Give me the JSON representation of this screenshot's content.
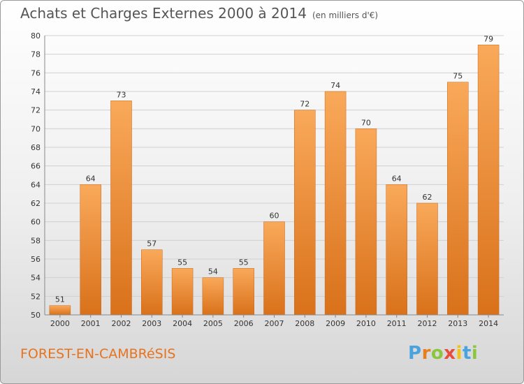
{
  "header": {
    "title": "Achats et Charges Externes 2000 à 2014",
    "unit": "(en milliers d'€)"
  },
  "footer": {
    "place": "FOREST-EN-CAMBRéSIS",
    "logo_letters": [
      {
        "ch": "P",
        "color": "#4aa3df"
      },
      {
        "ch": "r",
        "color": "#e67e22"
      },
      {
        "ch": "o",
        "color": "#8cc63f"
      },
      {
        "ch": "x",
        "color": "#e74c3c"
      },
      {
        "ch": "i",
        "color": "#f1c40f"
      },
      {
        "ch": "t",
        "color": "#4aa3df"
      },
      {
        "ch": "i",
        "color": "#8cc63f"
      }
    ]
  },
  "chart_data": {
    "type": "bar",
    "categories": [
      "2000",
      "2001",
      "2002",
      "2003",
      "2004",
      "2005",
      "2006",
      "2007",
      "2008",
      "2009",
      "2010",
      "2011",
      "2012",
      "2013",
      "2014"
    ],
    "values": [
      51,
      64,
      73,
      57,
      55,
      54,
      55,
      60,
      72,
      74,
      70,
      64,
      62,
      75,
      79
    ],
    "ylim": [
      50,
      80
    ],
    "yticks": [
      50,
      52,
      54,
      56,
      58,
      60,
      62,
      64,
      66,
      68,
      70,
      72,
      74,
      76,
      78,
      80
    ],
    "grid": true,
    "colors": {
      "bar_top": "#f9a95a",
      "bar_bottom": "#d9711a",
      "bar_edge": "#c8651a",
      "grid": "#d0d0d0",
      "text": "#333333"
    }
  }
}
